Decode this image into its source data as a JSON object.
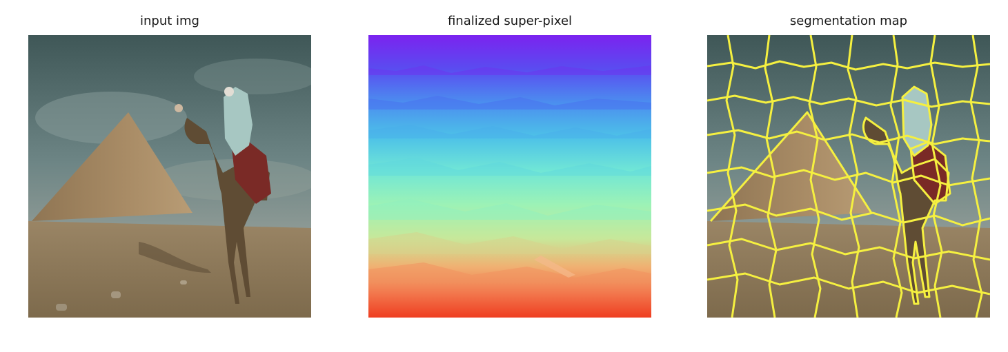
{
  "figure": {
    "panels": [
      {
        "title": "input img"
      },
      {
        "title": "finalized super-pixel"
      },
      {
        "title": "segmentation map"
      }
    ]
  },
  "colors": {
    "background": "#ffffff",
    "title_text": "#1a1a1a",
    "segment_boundary": "#f5f040"
  }
}
